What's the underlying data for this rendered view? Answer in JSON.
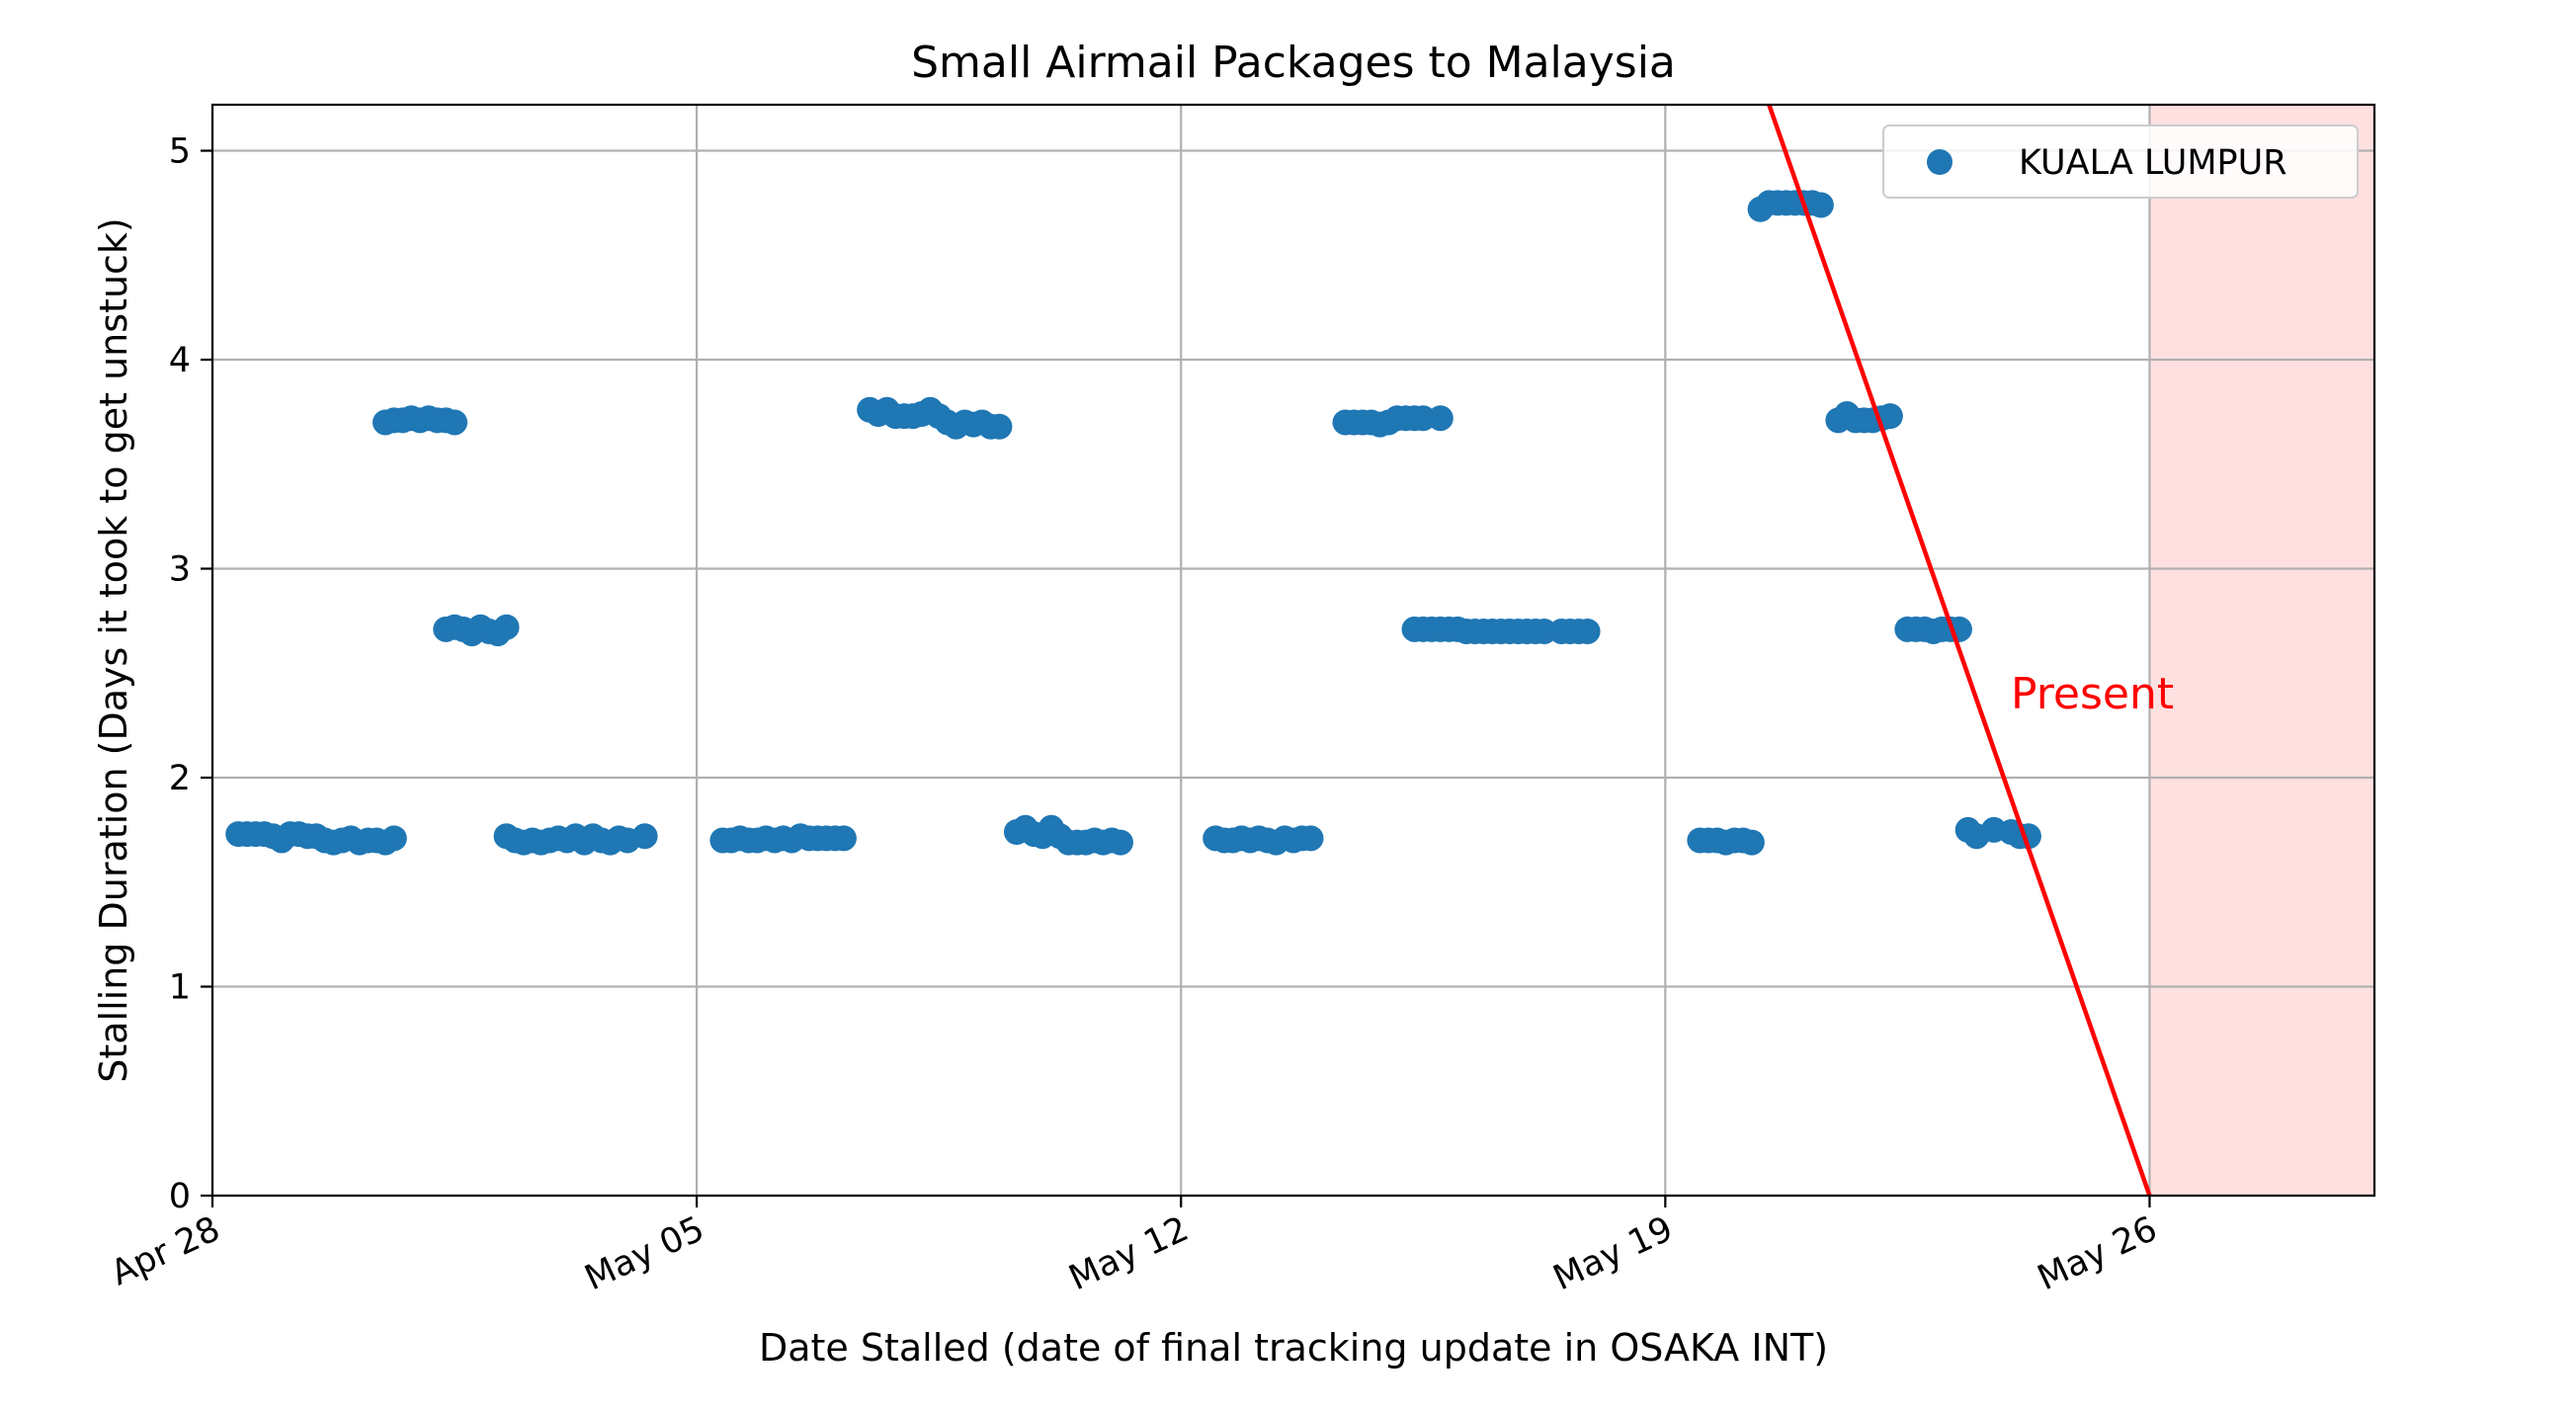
{
  "chart_data": {
    "type": "scatter",
    "title": "Small Airmail Packages to Malaysia",
    "xlabel": "Date Stalled (date of final tracking update in OSAKA INT)",
    "ylabel": "Stalling Duration (Days it took to get unstuck)",
    "x_type": "date",
    "xlim": [
      "2021-04-28",
      "2021-05-29T06:00"
    ],
    "ylim": [
      0,
      5.22
    ],
    "x_ticks": [
      {
        "value": "2021-04-28",
        "label": "Apr 28"
      },
      {
        "value": "2021-05-05",
        "label": "May 05"
      },
      {
        "value": "2021-05-12",
        "label": "May 12"
      },
      {
        "value": "2021-05-19",
        "label": "May 19"
      },
      {
        "value": "2021-05-26",
        "label": "May 26"
      }
    ],
    "y_ticks": [
      0,
      1,
      2,
      3,
      4,
      5
    ],
    "grid": true,
    "legend": {
      "position": "upper-right",
      "entries": [
        "KUALA LUMPUR"
      ]
    },
    "colors": {
      "series": "#1f77b4",
      "present_line": "#ff0000",
      "future_fill": "#ffe0e0"
    },
    "series": [
      {
        "name": "KUALA LUMPUR",
        "points": [
          {
            "x": "2021-04-28T09:00",
            "y": 1.73
          },
          {
            "x": "2021-04-28T12:00",
            "y": 1.73
          },
          {
            "x": "2021-04-28T15:00",
            "y": 1.73
          },
          {
            "x": "2021-04-28T18:00",
            "y": 1.73
          },
          {
            "x": "2021-04-28T21:00",
            "y": 1.72
          },
          {
            "x": "2021-04-29T00:00",
            "y": 1.7
          },
          {
            "x": "2021-04-29T03:00",
            "y": 1.73
          },
          {
            "x": "2021-04-29T06:00",
            "y": 1.73
          },
          {
            "x": "2021-04-29T09:00",
            "y": 1.72
          },
          {
            "x": "2021-04-29T12:00",
            "y": 1.72
          },
          {
            "x": "2021-04-29T15:00",
            "y": 1.7
          },
          {
            "x": "2021-04-29T18:00",
            "y": 1.69
          },
          {
            "x": "2021-04-29T21:00",
            "y": 1.7
          },
          {
            "x": "2021-04-30T00:00",
            "y": 1.71
          },
          {
            "x": "2021-04-30T03:00",
            "y": 1.69
          },
          {
            "x": "2021-04-30T06:00",
            "y": 1.7
          },
          {
            "x": "2021-04-30T09:00",
            "y": 1.7
          },
          {
            "x": "2021-04-30T12:00",
            "y": 1.69
          },
          {
            "x": "2021-04-30T15:00",
            "y": 1.71
          },
          {
            "x": "2021-04-30T12:00",
            "y": 3.7
          },
          {
            "x": "2021-04-30T15:00",
            "y": 3.71
          },
          {
            "x": "2021-04-30T18:00",
            "y": 3.71
          },
          {
            "x": "2021-04-30T21:00",
            "y": 3.72
          },
          {
            "x": "2021-05-01T00:00",
            "y": 3.71
          },
          {
            "x": "2021-05-01T03:00",
            "y": 3.72
          },
          {
            "x": "2021-05-01T06:00",
            "y": 3.71
          },
          {
            "x": "2021-05-01T09:00",
            "y": 3.71
          },
          {
            "x": "2021-05-01T12:00",
            "y": 3.7
          },
          {
            "x": "2021-05-01T09:00",
            "y": 2.71
          },
          {
            "x": "2021-05-01T12:00",
            "y": 2.72
          },
          {
            "x": "2021-05-01T15:00",
            "y": 2.71
          },
          {
            "x": "2021-05-01T18:00",
            "y": 2.69
          },
          {
            "x": "2021-05-01T21:00",
            "y": 2.72
          },
          {
            "x": "2021-05-02T00:00",
            "y": 2.7
          },
          {
            "x": "2021-05-02T03:00",
            "y": 2.69
          },
          {
            "x": "2021-05-02T06:00",
            "y": 2.72
          },
          {
            "x": "2021-05-02T06:00",
            "y": 1.72
          },
          {
            "x": "2021-05-02T09:00",
            "y": 1.7
          },
          {
            "x": "2021-05-02T12:00",
            "y": 1.69
          },
          {
            "x": "2021-05-02T15:00",
            "y": 1.7
          },
          {
            "x": "2021-05-02T18:00",
            "y": 1.69
          },
          {
            "x": "2021-05-02T21:00",
            "y": 1.7
          },
          {
            "x": "2021-05-03T00:00",
            "y": 1.71
          },
          {
            "x": "2021-05-03T03:00",
            "y": 1.7
          },
          {
            "x": "2021-05-03T06:00",
            "y": 1.72
          },
          {
            "x": "2021-05-03T09:00",
            "y": 1.69
          },
          {
            "x": "2021-05-03T12:00",
            "y": 1.72
          },
          {
            "x": "2021-05-03T15:00",
            "y": 1.7
          },
          {
            "x": "2021-05-03T18:00",
            "y": 1.69
          },
          {
            "x": "2021-05-03T21:00",
            "y": 1.71
          },
          {
            "x": "2021-05-04T00:00",
            "y": 1.7
          },
          {
            "x": "2021-05-04T06:00",
            "y": 1.72
          },
          {
            "x": "2021-05-05T09:00",
            "y": 1.7
          },
          {
            "x": "2021-05-05T12:00",
            "y": 1.7
          },
          {
            "x": "2021-05-05T15:00",
            "y": 1.71
          },
          {
            "x": "2021-05-05T18:00",
            "y": 1.7
          },
          {
            "x": "2021-05-05T21:00",
            "y": 1.7
          },
          {
            "x": "2021-05-06T00:00",
            "y": 1.71
          },
          {
            "x": "2021-05-06T03:00",
            "y": 1.7
          },
          {
            "x": "2021-05-06T06:00",
            "y": 1.71
          },
          {
            "x": "2021-05-06T09:00",
            "y": 1.7
          },
          {
            "x": "2021-05-06T12:00",
            "y": 1.72
          },
          {
            "x": "2021-05-06T15:00",
            "y": 1.71
          },
          {
            "x": "2021-05-06T18:00",
            "y": 1.71
          },
          {
            "x": "2021-05-06T21:00",
            "y": 1.71
          },
          {
            "x": "2021-05-07T00:00",
            "y": 1.71
          },
          {
            "x": "2021-05-07T03:00",
            "y": 1.71
          },
          {
            "x": "2021-05-07T12:00",
            "y": 3.76
          },
          {
            "x": "2021-05-07T15:00",
            "y": 3.74
          },
          {
            "x": "2021-05-07T18:00",
            "y": 3.76
          },
          {
            "x": "2021-05-07T21:00",
            "y": 3.73
          },
          {
            "x": "2021-05-08T00:00",
            "y": 3.73
          },
          {
            "x": "2021-05-08T03:00",
            "y": 3.73
          },
          {
            "x": "2021-05-08T06:00",
            "y": 3.74
          },
          {
            "x": "2021-05-08T09:00",
            "y": 3.76
          },
          {
            "x": "2021-05-08T12:00",
            "y": 3.73
          },
          {
            "x": "2021-05-08T15:00",
            "y": 3.7
          },
          {
            "x": "2021-05-08T18:00",
            "y": 3.68
          },
          {
            "x": "2021-05-08T21:00",
            "y": 3.7
          },
          {
            "x": "2021-05-09T00:00",
            "y": 3.69
          },
          {
            "x": "2021-05-09T03:00",
            "y": 3.7
          },
          {
            "x": "2021-05-09T06:00",
            "y": 3.68
          },
          {
            "x": "2021-05-09T09:00",
            "y": 3.68
          },
          {
            "x": "2021-05-09T15:00",
            "y": 1.74
          },
          {
            "x": "2021-05-09T18:00",
            "y": 1.76
          },
          {
            "x": "2021-05-09T21:00",
            "y": 1.73
          },
          {
            "x": "2021-05-10T00:00",
            "y": 1.72
          },
          {
            "x": "2021-05-10T03:00",
            "y": 1.76
          },
          {
            "x": "2021-05-10T06:00",
            "y": 1.72
          },
          {
            "x": "2021-05-10T09:00",
            "y": 1.69
          },
          {
            "x": "2021-05-10T12:00",
            "y": 1.69
          },
          {
            "x": "2021-05-10T15:00",
            "y": 1.69
          },
          {
            "x": "2021-05-10T18:00",
            "y": 1.7
          },
          {
            "x": "2021-05-10T21:00",
            "y": 1.69
          },
          {
            "x": "2021-05-11T00:00",
            "y": 1.7
          },
          {
            "x": "2021-05-11T03:00",
            "y": 1.69
          },
          {
            "x": "2021-05-12T12:00",
            "y": 1.71
          },
          {
            "x": "2021-05-12T15:00",
            "y": 1.7
          },
          {
            "x": "2021-05-12T18:00",
            "y": 1.7
          },
          {
            "x": "2021-05-12T21:00",
            "y": 1.71
          },
          {
            "x": "2021-05-13T00:00",
            "y": 1.7
          },
          {
            "x": "2021-05-13T03:00",
            "y": 1.71
          },
          {
            "x": "2021-05-13T06:00",
            "y": 1.7
          },
          {
            "x": "2021-05-13T09:00",
            "y": 1.69
          },
          {
            "x": "2021-05-13T12:00",
            "y": 1.71
          },
          {
            "x": "2021-05-13T15:00",
            "y": 1.7
          },
          {
            "x": "2021-05-13T18:00",
            "y": 1.71
          },
          {
            "x": "2021-05-13T21:00",
            "y": 1.71
          },
          {
            "x": "2021-05-14T09:00",
            "y": 3.7
          },
          {
            "x": "2021-05-14T12:00",
            "y": 3.7
          },
          {
            "x": "2021-05-14T15:00",
            "y": 3.7
          },
          {
            "x": "2021-05-14T18:00",
            "y": 3.7
          },
          {
            "x": "2021-05-14T21:00",
            "y": 3.69
          },
          {
            "x": "2021-05-15T00:00",
            "y": 3.7
          },
          {
            "x": "2021-05-15T03:00",
            "y": 3.72
          },
          {
            "x": "2021-05-15T06:00",
            "y": 3.72
          },
          {
            "x": "2021-05-15T09:00",
            "y": 3.72
          },
          {
            "x": "2021-05-15T12:00",
            "y": 3.72
          },
          {
            "x": "2021-05-15T18:00",
            "y": 3.72
          },
          {
            "x": "2021-05-15T09:00",
            "y": 2.71
          },
          {
            "x": "2021-05-15T12:00",
            "y": 2.71
          },
          {
            "x": "2021-05-15T15:00",
            "y": 2.71
          },
          {
            "x": "2021-05-15T18:00",
            "y": 2.71
          },
          {
            "x": "2021-05-15T21:00",
            "y": 2.71
          },
          {
            "x": "2021-05-16T00:00",
            "y": 2.71
          },
          {
            "x": "2021-05-16T03:00",
            "y": 2.7
          },
          {
            "x": "2021-05-16T06:00",
            "y": 2.7
          },
          {
            "x": "2021-05-16T09:00",
            "y": 2.7
          },
          {
            "x": "2021-05-16T12:00",
            "y": 2.7
          },
          {
            "x": "2021-05-16T15:00",
            "y": 2.7
          },
          {
            "x": "2021-05-16T18:00",
            "y": 2.7
          },
          {
            "x": "2021-05-16T21:00",
            "y": 2.7
          },
          {
            "x": "2021-05-17T00:00",
            "y": 2.7
          },
          {
            "x": "2021-05-17T03:00",
            "y": 2.7
          },
          {
            "x": "2021-05-17T06:00",
            "y": 2.7
          },
          {
            "x": "2021-05-17T12:00",
            "y": 2.7
          },
          {
            "x": "2021-05-17T15:00",
            "y": 2.7
          },
          {
            "x": "2021-05-17T18:00",
            "y": 2.7
          },
          {
            "x": "2021-05-17T21:00",
            "y": 2.7
          },
          {
            "x": "2021-05-19T12:00",
            "y": 1.7
          },
          {
            "x": "2021-05-19T15:00",
            "y": 1.7
          },
          {
            "x": "2021-05-19T18:00",
            "y": 1.7
          },
          {
            "x": "2021-05-19T21:00",
            "y": 1.69
          },
          {
            "x": "2021-05-20T00:00",
            "y": 1.7
          },
          {
            "x": "2021-05-20T03:00",
            "y": 1.7
          },
          {
            "x": "2021-05-20T06:00",
            "y": 1.69
          },
          {
            "x": "2021-05-20T09:00",
            "y": 4.72
          },
          {
            "x": "2021-05-20T12:00",
            "y": 4.75
          },
          {
            "x": "2021-05-20T15:00",
            "y": 4.75
          },
          {
            "x": "2021-05-20T18:00",
            "y": 4.75
          },
          {
            "x": "2021-05-20T21:00",
            "y": 4.75
          },
          {
            "x": "2021-05-21T00:00",
            "y": 4.75
          },
          {
            "x": "2021-05-21T03:00",
            "y": 4.75
          },
          {
            "x": "2021-05-21T06:00",
            "y": 4.74
          },
          {
            "x": "2021-05-21T12:00",
            "y": 3.71
          },
          {
            "x": "2021-05-21T15:00",
            "y": 3.74
          },
          {
            "x": "2021-05-21T18:00",
            "y": 3.71
          },
          {
            "x": "2021-05-21T21:00",
            "y": 3.71
          },
          {
            "x": "2021-05-22T00:00",
            "y": 3.71
          },
          {
            "x": "2021-05-22T03:00",
            "y": 3.72
          },
          {
            "x": "2021-05-22T06:00",
            "y": 3.73
          },
          {
            "x": "2021-05-22T12:00",
            "y": 2.71
          },
          {
            "x": "2021-05-22T15:00",
            "y": 2.71
          },
          {
            "x": "2021-05-22T18:00",
            "y": 2.71
          },
          {
            "x": "2021-05-22T21:00",
            "y": 2.7
          },
          {
            "x": "2021-05-23T00:00",
            "y": 2.71
          },
          {
            "x": "2021-05-23T03:00",
            "y": 2.71
          },
          {
            "x": "2021-05-23T06:00",
            "y": 2.71
          },
          {
            "x": "2021-05-23T09:00",
            "y": 1.75
          },
          {
            "x": "2021-05-23T12:00",
            "y": 1.72
          },
          {
            "x": "2021-05-23T18:00",
            "y": 1.75
          },
          {
            "x": "2021-05-24T00:00",
            "y": 1.74
          },
          {
            "x": "2021-05-24T03:00",
            "y": 1.72
          },
          {
            "x": "2021-05-24T06:00",
            "y": 1.72
          }
        ]
      }
    ],
    "present_line": {
      "label": "Present",
      "start": {
        "x": "2021-05-20T12:00",
        "y": 5.22
      },
      "end": {
        "x": "2021-05-26",
        "y": 0
      }
    },
    "shaded_future_start": "2021-05-26"
  }
}
